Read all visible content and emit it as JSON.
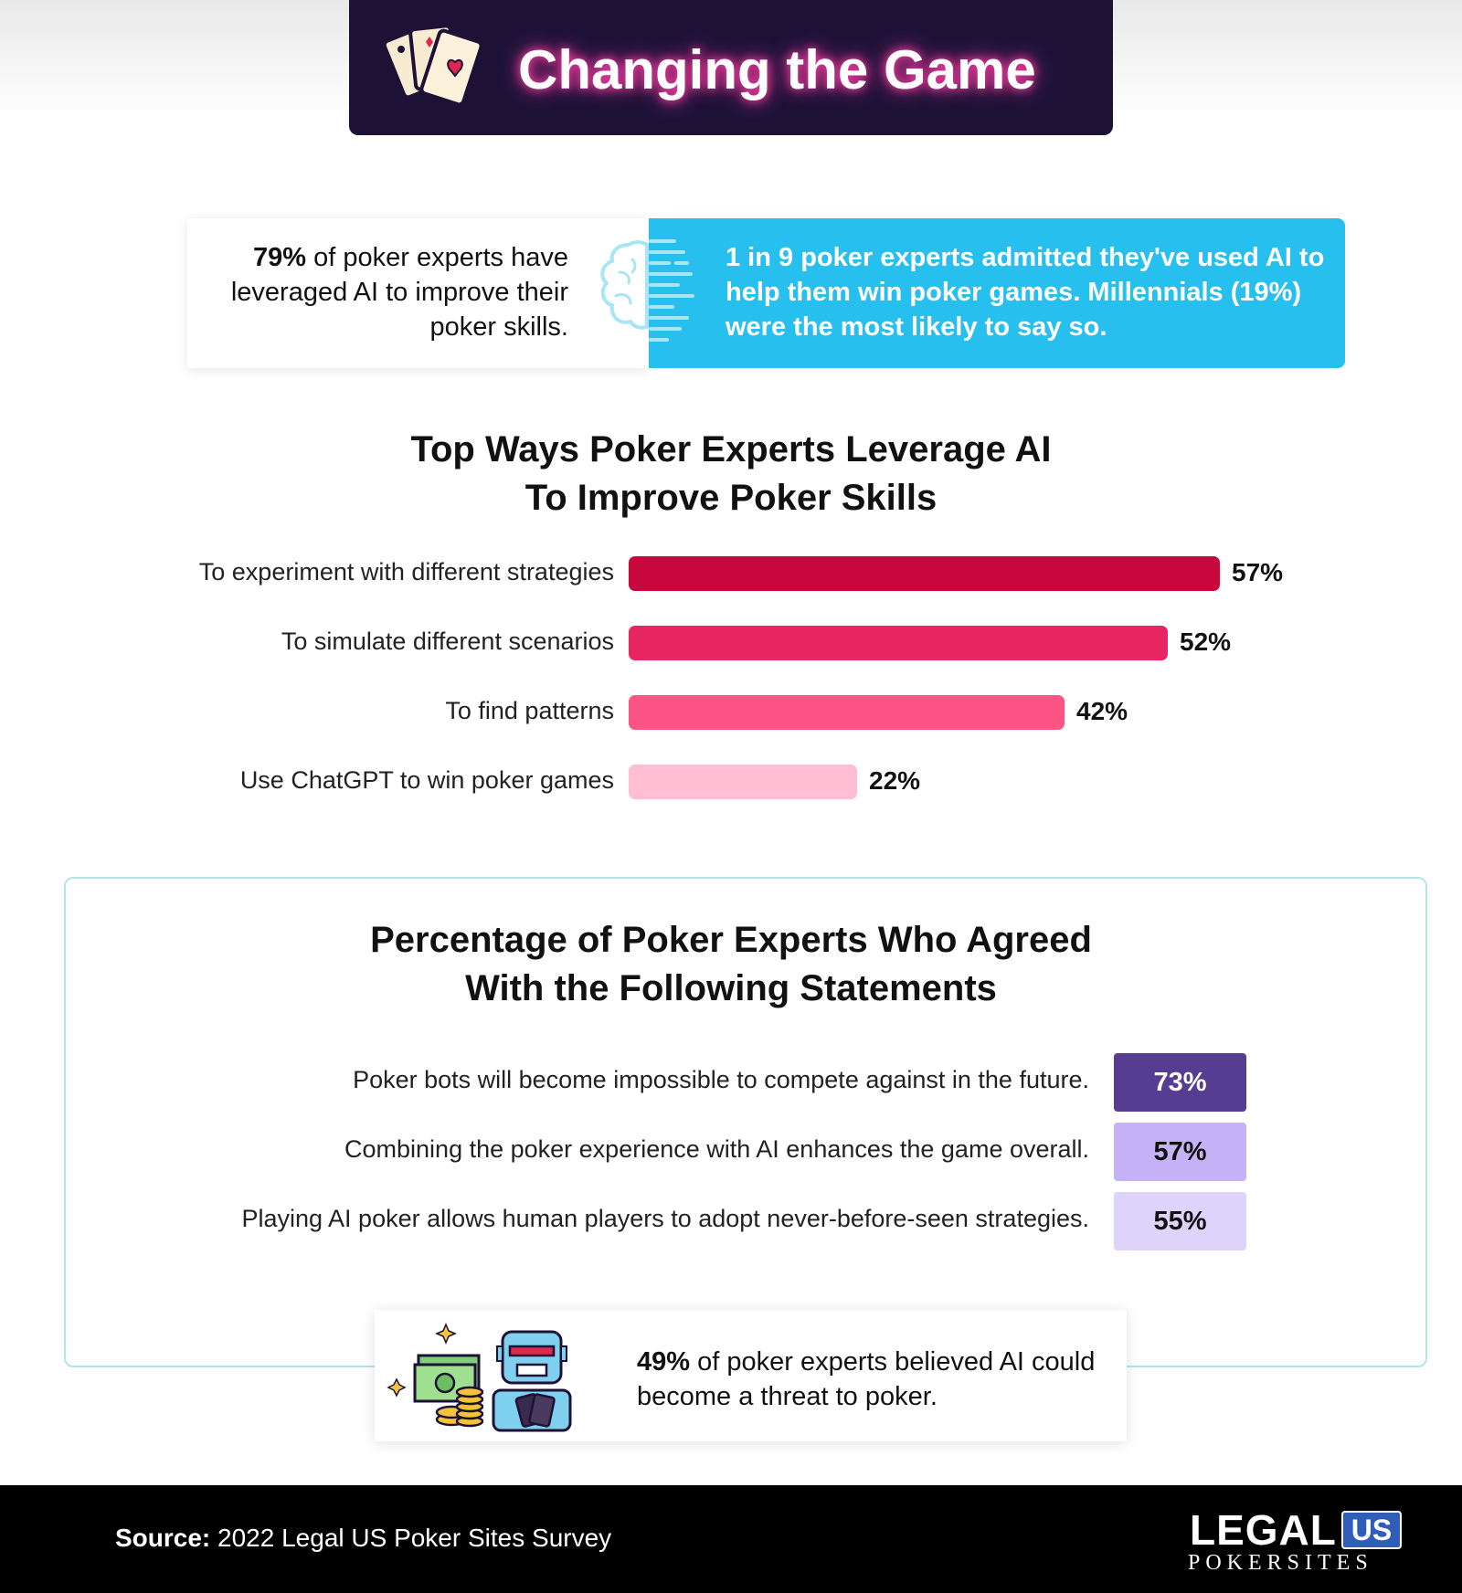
{
  "header": {
    "title": "Changing the Game",
    "icon": "playing-cards-icon"
  },
  "stats": {
    "left": {
      "bold": "79%",
      "rest": " of poker experts have leveraged AI to improve their poker skills."
    },
    "right": {
      "bold": "1 in 9",
      "rest": " poker experts admitted they've used AI to help them win poker games. Millennials (19%) were the most likely to say so."
    },
    "icon": "brain-icon"
  },
  "chart_data": {
    "type": "bar",
    "orientation": "horizontal",
    "title": "Top Ways Poker Experts Leverage AI To Improve Poker Skills",
    "title_lines": [
      "Top Ways Poker Experts Leverage AI",
      "To Improve Poker Skills"
    ],
    "categories": [
      "To experiment with different strategies",
      "To simulate different scenarios",
      "To find patterns",
      "Use ChatGPT to win poker games"
    ],
    "values": [
      57,
      52,
      42,
      22
    ],
    "value_labels": [
      "57%",
      "52%",
      "42%",
      "22%"
    ],
    "colors": [
      "#c8073d",
      "#e62561",
      "#fc5484",
      "#ffbed2"
    ],
    "unit": "%",
    "xlim": [
      0,
      57
    ],
    "grid": false,
    "legend": "none"
  },
  "statements": {
    "title_lines": [
      "Percentage of Poker Experts Who Agreed",
      "With the Following Statements"
    ],
    "items": [
      {
        "text": "Poker bots will become impossible to compete against in the future.",
        "value": "73%",
        "bg": "#563d91",
        "fg": "#ffffff"
      },
      {
        "text": "Combining the poker experience with AI enhances the game overall.",
        "value": "57%",
        "bg": "#c5b2f7",
        "fg": "#111111"
      },
      {
        "text": "Playing AI poker allows human players to adopt never-before-seen strategies.",
        "value": "55%",
        "bg": "#ded4fb",
        "fg": "#111111"
      }
    ]
  },
  "threat": {
    "bold": "49%",
    "rest": " of poker experts believed AI could become a threat to poker.",
    "icon": "robot-with-money-icon"
  },
  "footer": {
    "source_label": "Source:",
    "source_text": " 2022 Legal US Poker Sites Survey",
    "logo": {
      "main": "LEGAL",
      "badge": "US",
      "sub": "POKERSITES"
    }
  }
}
